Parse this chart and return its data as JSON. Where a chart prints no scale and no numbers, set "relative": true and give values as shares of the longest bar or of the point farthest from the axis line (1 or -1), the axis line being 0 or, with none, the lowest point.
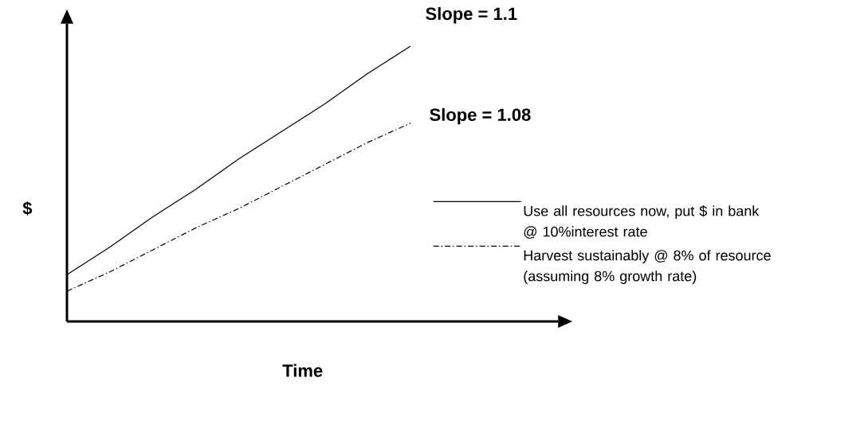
{
  "chart_data": {
    "type": "line",
    "relative": true,
    "xlabel": "Time",
    "ylabel": "$",
    "categories": [
      null,
      null,
      null,
      null,
      null,
      null,
      null,
      null,
      null
    ],
    "series": [
      {
        "name": "Use all resources now, put $ in bank @ 10%interest rate",
        "color": "#000000",
        "line_style": "solid",
        "values": [
          0.17,
          0.27,
          0.38,
          0.48,
          0.59,
          0.69,
          0.79,
          0.9,
          1.0
        ]
      },
      {
        "name": "Harvest sustainably @ 8% of resource (assuming 8% growth rate)",
        "color": "#000000",
        "line_style": "dashed",
        "values": [
          0.11,
          0.18,
          0.26,
          0.34,
          0.41,
          0.49,
          0.57,
          0.65,
          0.72
        ]
      }
    ],
    "annotations": [
      "Slope = 1.1",
      "Slope = 1.08"
    ],
    "legend": "right",
    "marker": "none"
  }
}
